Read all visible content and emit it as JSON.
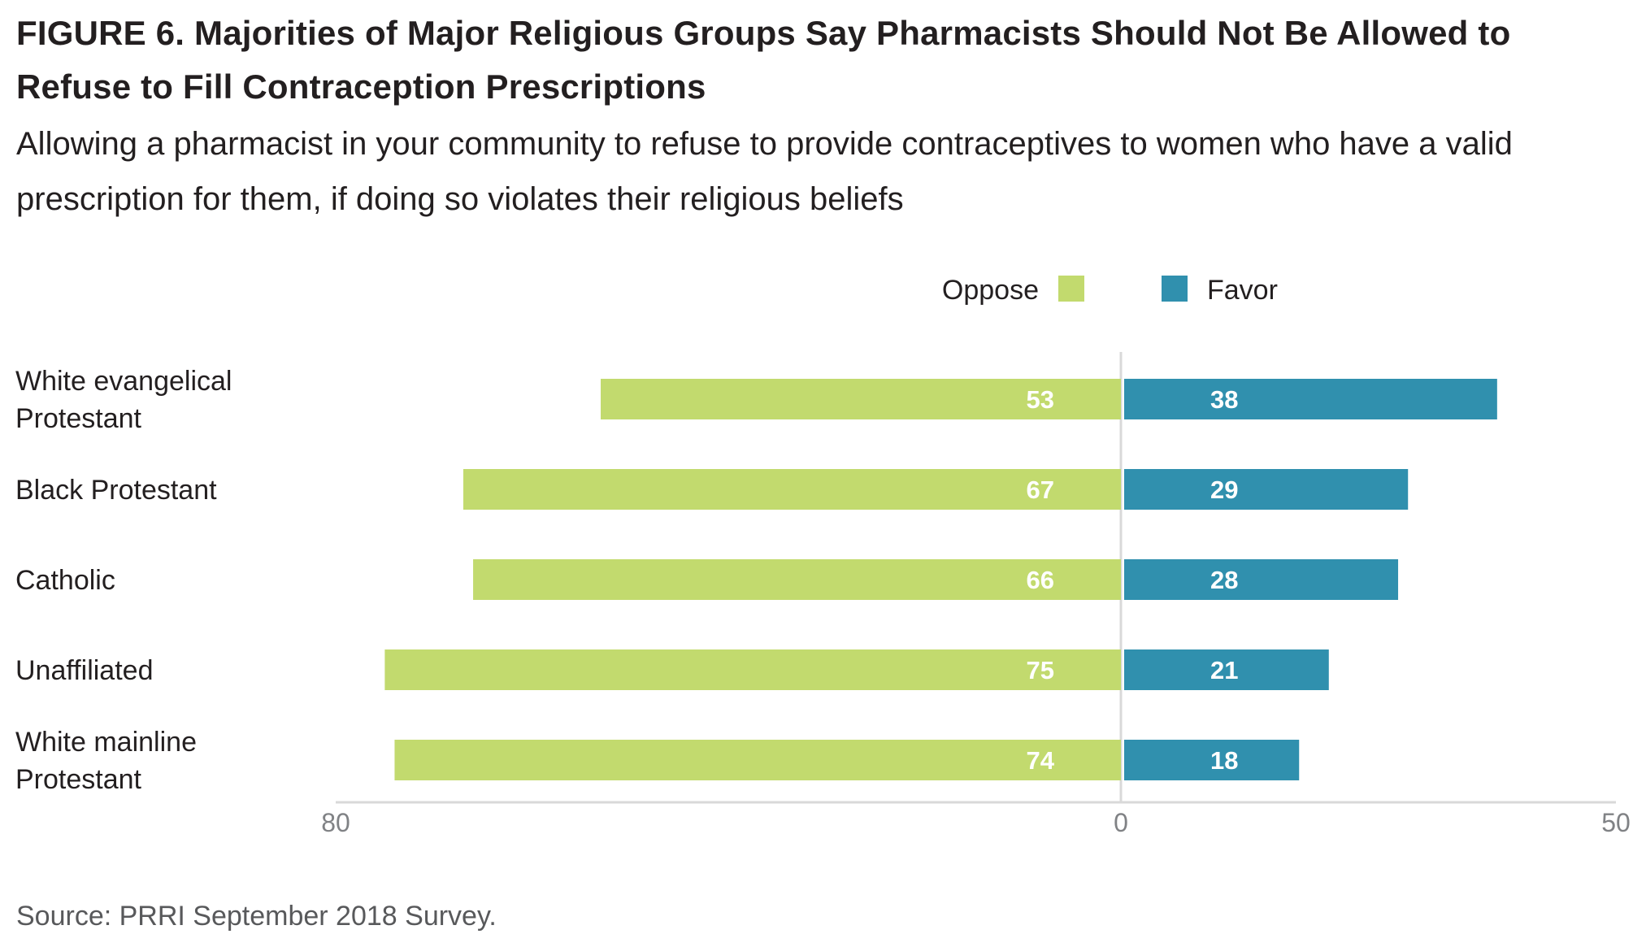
{
  "header": {
    "title": "FIGURE 6.  Majorities of Major Religious Groups Say Pharmacists Should Not Be Allowed to Refuse to Fill Contraception Prescriptions",
    "subtitle": "Allowing a pharmacist in your community to refuse to provide contraceptives to women who have a valid prescription for them, if doing so violates their religious beliefs"
  },
  "footer": {
    "source": "Source: PRRI September 2018 Survey."
  },
  "chart_data": {
    "type": "bar",
    "orientation": "horizontal-diverging",
    "categories": [
      [
        "White evangelical",
        "Protestant"
      ],
      [
        "Black Protestant"
      ],
      [
        "Catholic"
      ],
      [
        "Unaffiliated"
      ],
      [
        "White mainline",
        "Protestant"
      ]
    ],
    "series": [
      {
        "name": "Oppose",
        "color": "#c2da6e",
        "direction": "left",
        "values": [
          53,
          67,
          66,
          75,
          74
        ]
      },
      {
        "name": "Favor",
        "color": "#3090ae",
        "direction": "right",
        "values": [
          38,
          29,
          28,
          21,
          18
        ]
      }
    ],
    "legend": {
      "position": "top-right",
      "order": [
        "Oppose",
        "Favor"
      ]
    },
    "axis": {
      "left_max": 80,
      "right_max": 50,
      "ticks": [
        "80",
        "0",
        "50"
      ]
    },
    "colors": {
      "text": "#231f20",
      "axis": "#d9d9d9",
      "tick_text": "#808285"
    }
  }
}
